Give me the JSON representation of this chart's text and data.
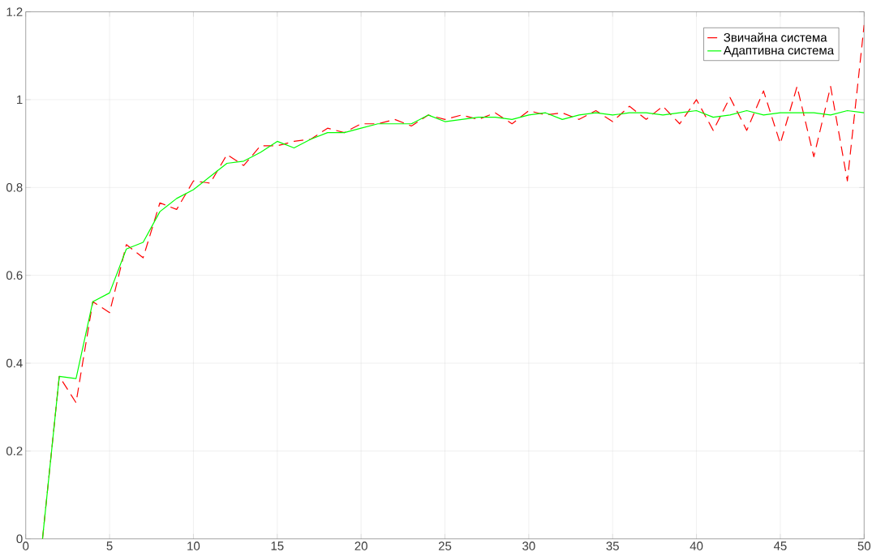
{
  "chart_data": {
    "type": "line",
    "x": [
      1,
      2,
      3,
      4,
      5,
      6,
      7,
      8,
      9,
      10,
      11,
      12,
      13,
      14,
      15,
      16,
      17,
      18,
      19,
      20,
      21,
      22,
      23,
      24,
      25,
      26,
      27,
      28,
      29,
      30,
      31,
      32,
      33,
      34,
      35,
      36,
      37,
      38,
      39,
      40,
      41,
      42,
      43,
      44,
      45,
      46,
      47,
      48,
      49,
      50
    ],
    "series": [
      {
        "name": "Звичайна система",
        "color": "#ff0000",
        "line_style": "dashed",
        "values": [
          0,
          0.37,
          0.31,
          0.54,
          0.515,
          0.67,
          0.64,
          0.765,
          0.75,
          0.815,
          0.81,
          0.875,
          0.85,
          0.895,
          0.895,
          0.905,
          0.91,
          0.935,
          0.925,
          0.945,
          0.945,
          0.955,
          0.94,
          0.965,
          0.955,
          0.965,
          0.955,
          0.97,
          0.945,
          0.975,
          0.965,
          0.97,
          0.955,
          0.975,
          0.95,
          0.985,
          0.955,
          0.985,
          0.945,
          1.0,
          0.93,
          1.005,
          0.93,
          1.02,
          0.9,
          1.03,
          0.87,
          1.03,
          0.815,
          1.17
        ]
      },
      {
        "name": "Адаптивна система",
        "color": "#00ff00",
        "line_style": "solid",
        "values": [
          0,
          0.37,
          0.365,
          0.54,
          0.56,
          0.66,
          0.675,
          0.745,
          0.775,
          0.795,
          0.825,
          0.855,
          0.86,
          0.88,
          0.905,
          0.89,
          0.91,
          0.925,
          0.925,
          0.935,
          0.945,
          0.945,
          0.945,
          0.965,
          0.95,
          0.955,
          0.96,
          0.96,
          0.955,
          0.965,
          0.97,
          0.955,
          0.965,
          0.97,
          0.965,
          0.97,
          0.97,
          0.965,
          0.97,
          0.975,
          0.96,
          0.965,
          0.975,
          0.965,
          0.97,
          0.97,
          0.97,
          0.965,
          0.975,
          0.97
        ]
      }
    ],
    "xlim": [
      0,
      50
    ],
    "ylim": [
      0,
      1.2
    ],
    "xticks": [
      0,
      5,
      10,
      15,
      20,
      25,
      30,
      35,
      40,
      45,
      50
    ],
    "yticks": [
      0,
      0.2,
      0.4,
      0.6,
      0.8,
      1,
      1.2
    ],
    "grid": true,
    "legend": "top right",
    "marker": "none"
  }
}
